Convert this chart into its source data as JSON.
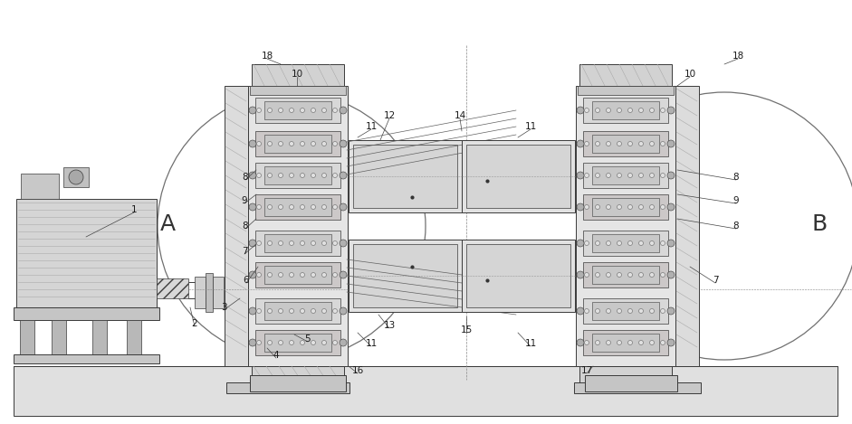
{
  "bg_color": "#ffffff",
  "lc": "#3a3a3a",
  "gray1": "#e8e8e8",
  "gray2": "#d0d0d0",
  "gray3": "#b8b8b8",
  "gray4": "#989898",
  "hatch_gray": "#888888",
  "figsize": [
    9.41,
    4.69
  ],
  "dpi": 100
}
